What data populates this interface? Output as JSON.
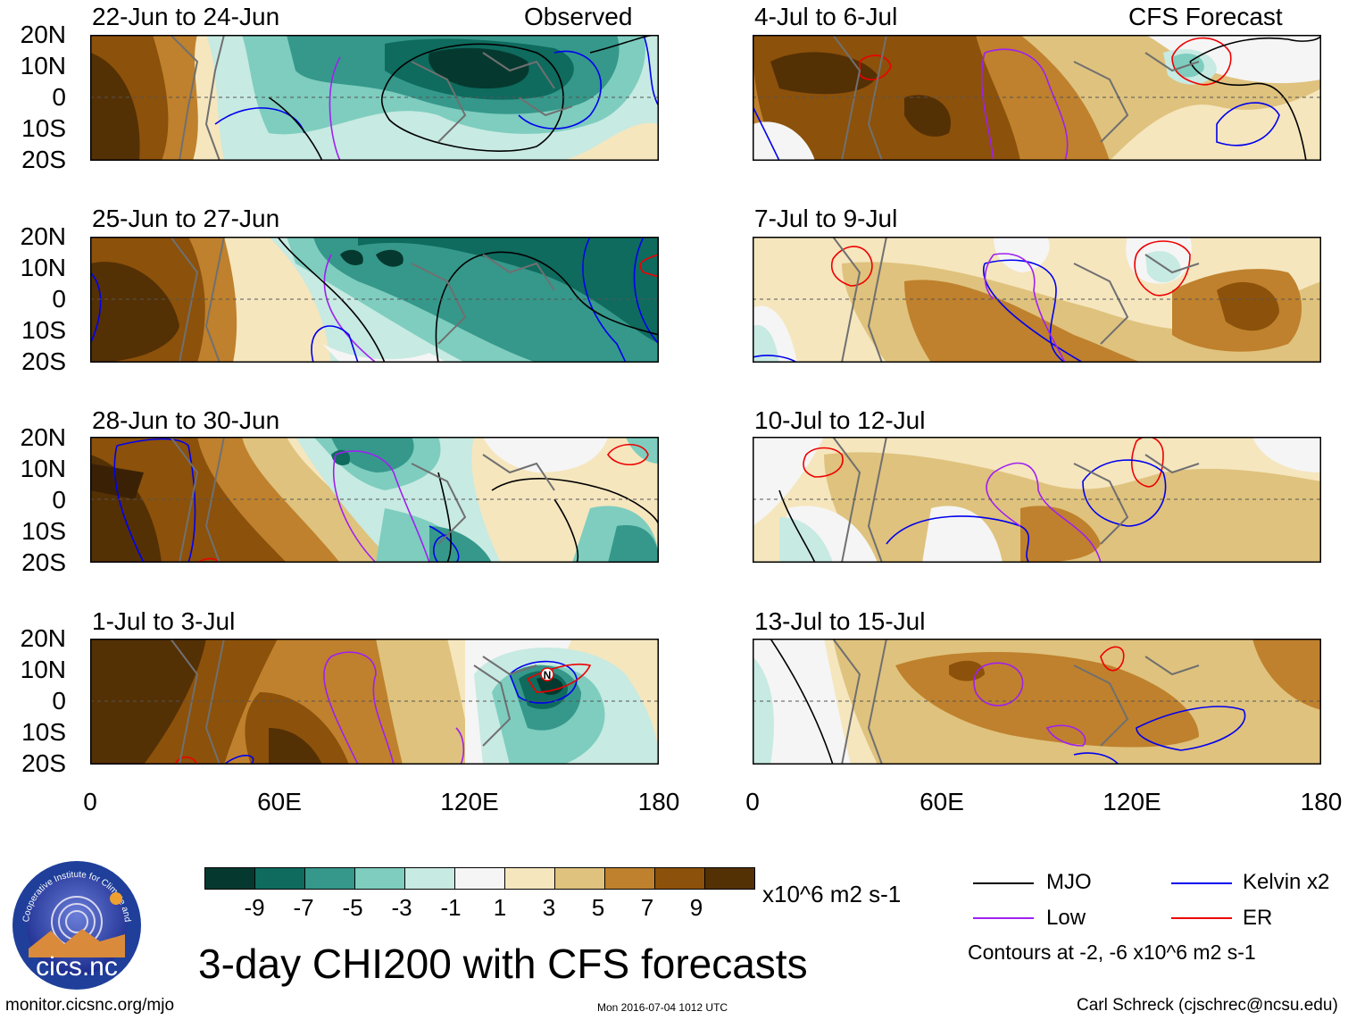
{
  "columns": {
    "left_title": "Observed",
    "right_title": "CFS Forecast"
  },
  "panels_left": [
    {
      "period": "22-Jun to 24-Jun"
    },
    {
      "period": "25-Jun to 27-Jun"
    },
    {
      "period": "28-Jun to 30-Jun"
    },
    {
      "period": "1-Jul to 3-Jul"
    }
  ],
  "panels_right": [
    {
      "period": "4-Jul to 6-Jul"
    },
    {
      "period": "7-Jul to 9-Jul"
    },
    {
      "period": "10-Jul to 12-Jul"
    },
    {
      "period": "13-Jul to 15-Jul"
    }
  ],
  "axes": {
    "lat_labels": [
      "20N",
      "10N",
      "0",
      "10S",
      "20S"
    ],
    "lon_labels": [
      "0",
      "60E",
      "120E",
      "180"
    ]
  },
  "colorbar": {
    "ticks": [
      "-9",
      "-7",
      "-5",
      "-3",
      "-1",
      "1",
      "3",
      "5",
      "7",
      "9"
    ],
    "colors": [
      "#05392f",
      "#0e6b5e",
      "#35988b",
      "#7ecdbf",
      "#c7eae2",
      "#f5f5f5",
      "#f5e6be",
      "#dfc27d",
      "#bf812d",
      "#8c510a",
      "#543005"
    ],
    "units": "x10^6 m2 s-1"
  },
  "legend": {
    "items": [
      {
        "label": "MJO",
        "color": "#000000"
      },
      {
        "label": "Kelvin x2",
        "color": "#0000ee"
      },
      {
        "label": "Low",
        "color": "#a020f0"
      },
      {
        "label": "ER",
        "color": "#ee0000"
      }
    ],
    "note": "Contours at -2, -6 x10^6 m2 s-1"
  },
  "main_title": "3-day CHI200 with CFS forecasts",
  "logo_text": "cics.nc",
  "logo_ring_text": "Cooperative Institute for Climate and Satellites",
  "storm_marker": "N",
  "footer": {
    "url": "monitor.cicsnc.org/mjo",
    "timestamp": "Mon 2016-07-04 1012 UTC",
    "credit": "Carl Schreck (cjschrec@ncsu.edu)"
  }
}
